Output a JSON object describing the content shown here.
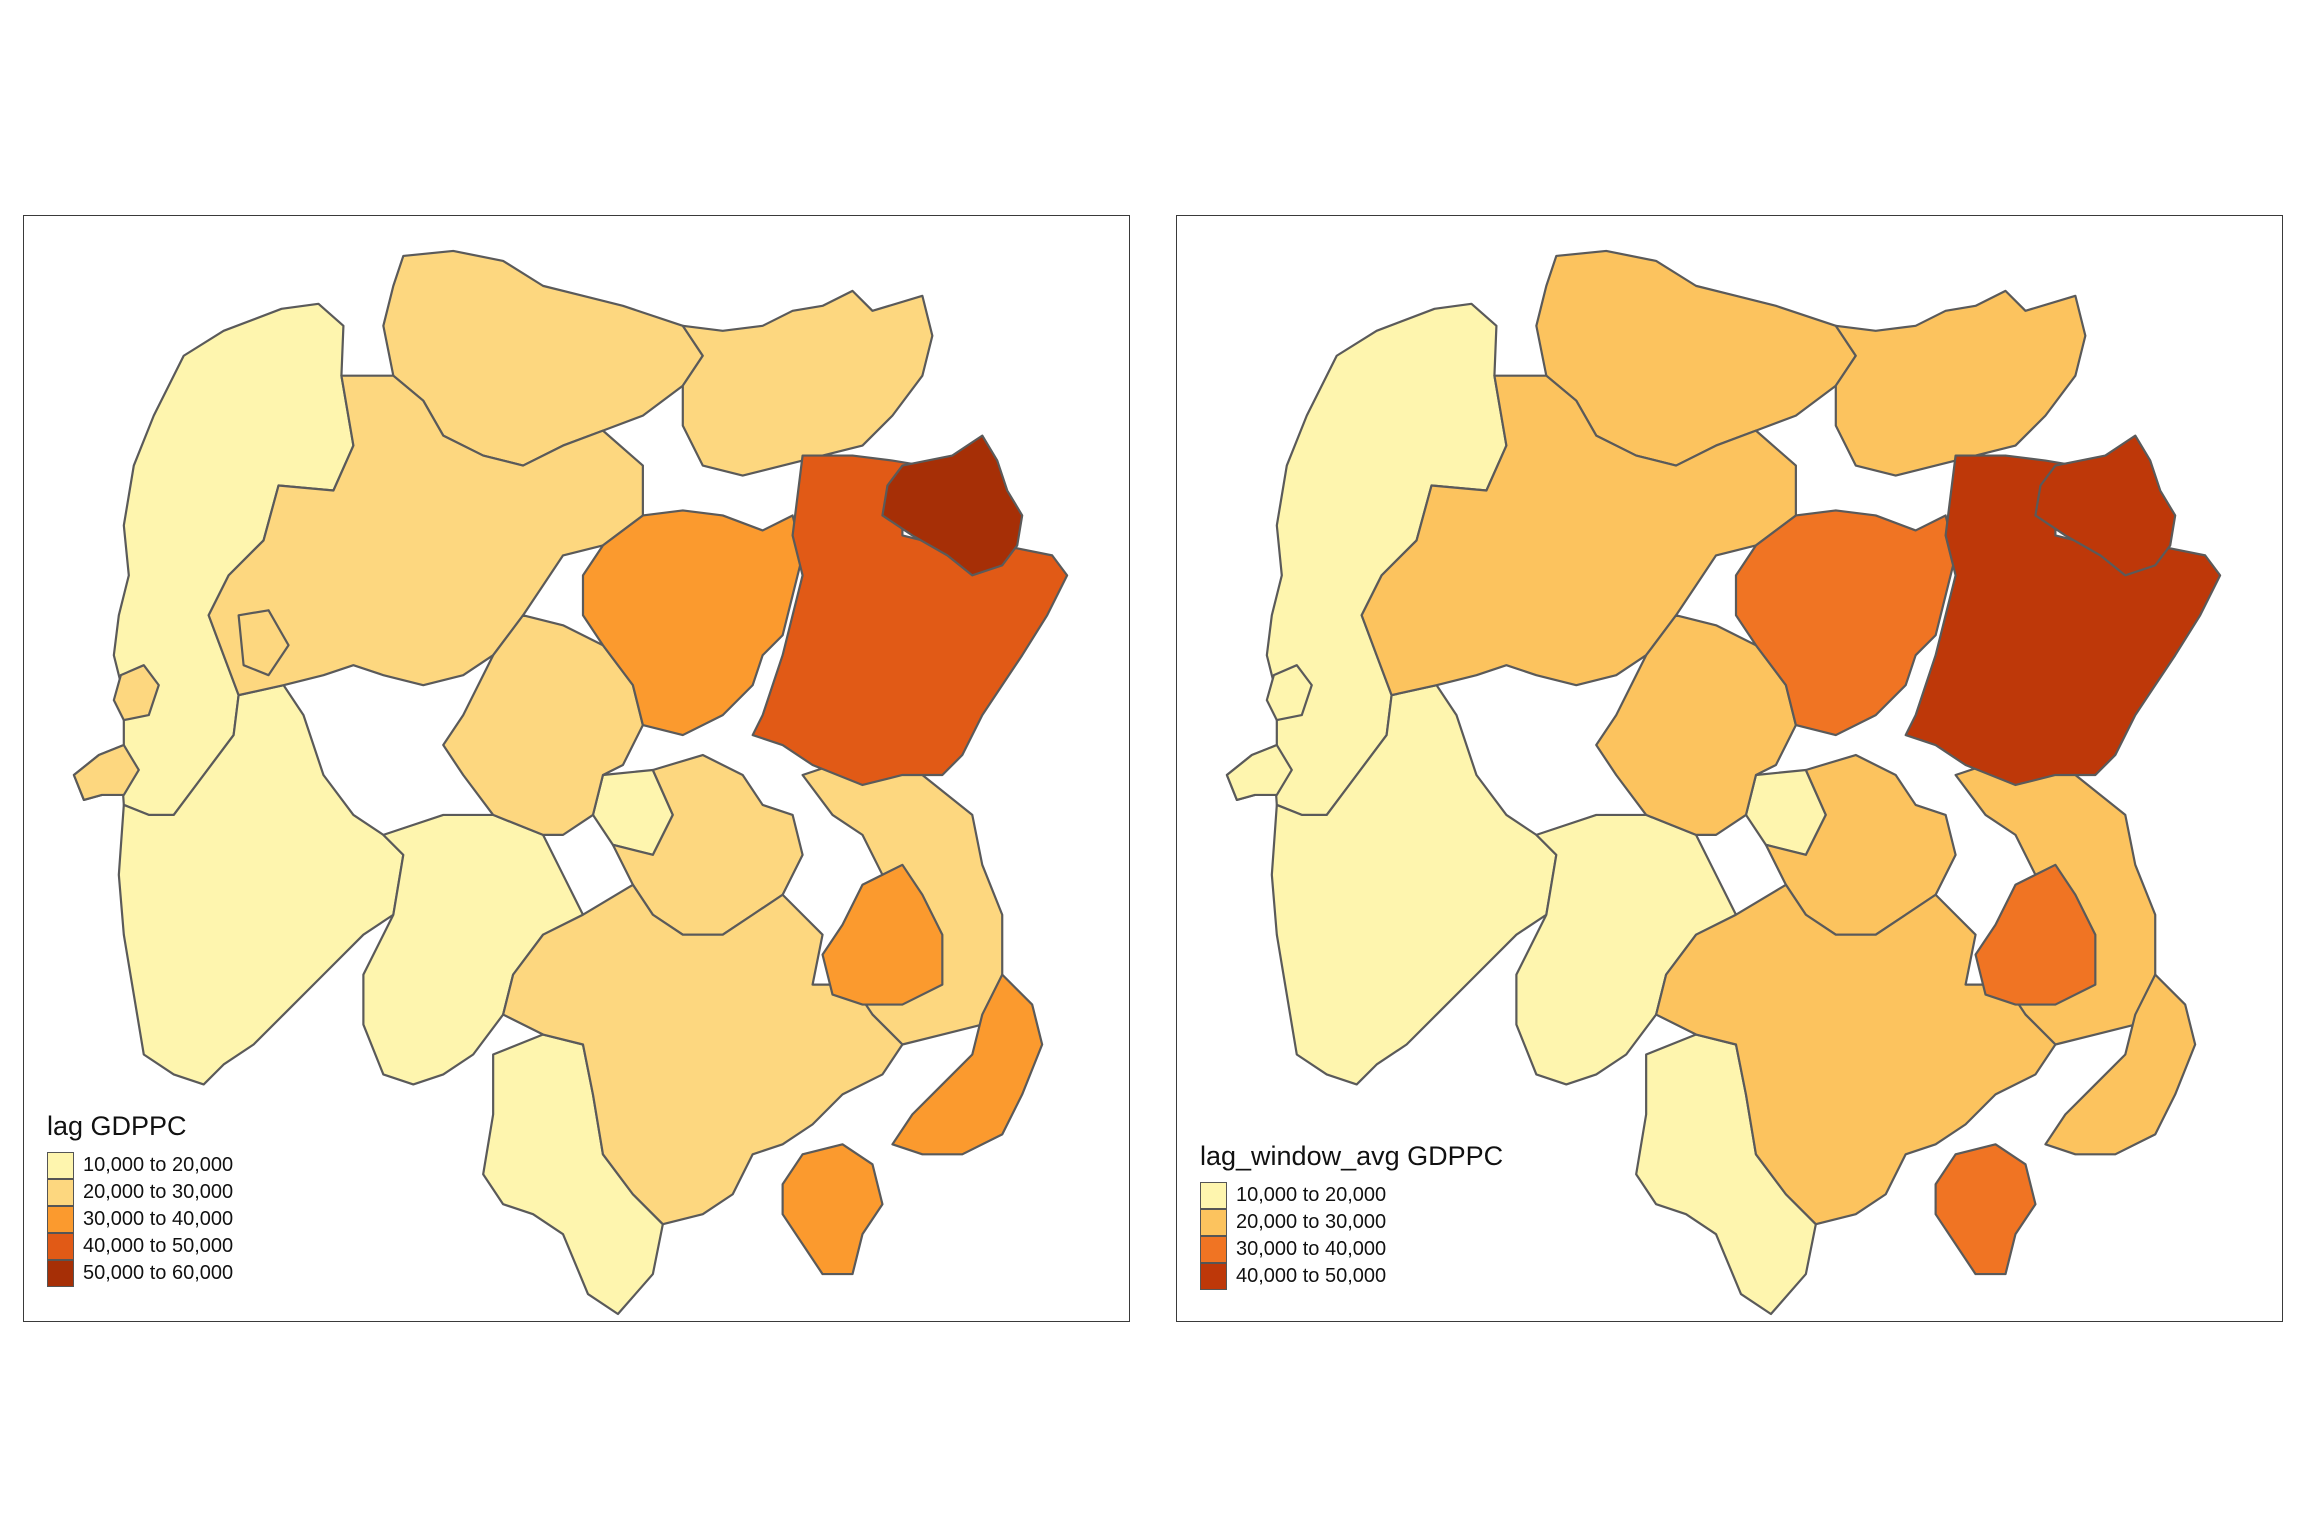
{
  "maps": [
    {
      "legend": {
        "title": "lag GDPPC",
        "items": [
          {
            "label": "10,000 to 20,000",
            "color": "#FEF5AE"
          },
          {
            "label": "20,000 to 30,000",
            "color": "#FDD77F"
          },
          {
            "label": "30,000 to 40,000",
            "color": "#FB9A2E"
          },
          {
            "label": "40,000 to 50,000",
            "color": "#E15A16"
          },
          {
            "label": "50,000 to 60,000",
            "color": "#A62F06"
          }
        ]
      }
    },
    {
      "legend": {
        "title": "lag_window_avg GDPPC",
        "items": [
          {
            "label": "10,000 to 20,000",
            "color": "#FEF5AE"
          },
          {
            "label": "20,000 to 30,000",
            "color": "#FCC35E"
          },
          {
            "label": "30,000 to 40,000",
            "color": "#F07423"
          },
          {
            "label": "40,000 to 50,000",
            "color": "#BE3809"
          }
        ]
      }
    }
  ]
}
